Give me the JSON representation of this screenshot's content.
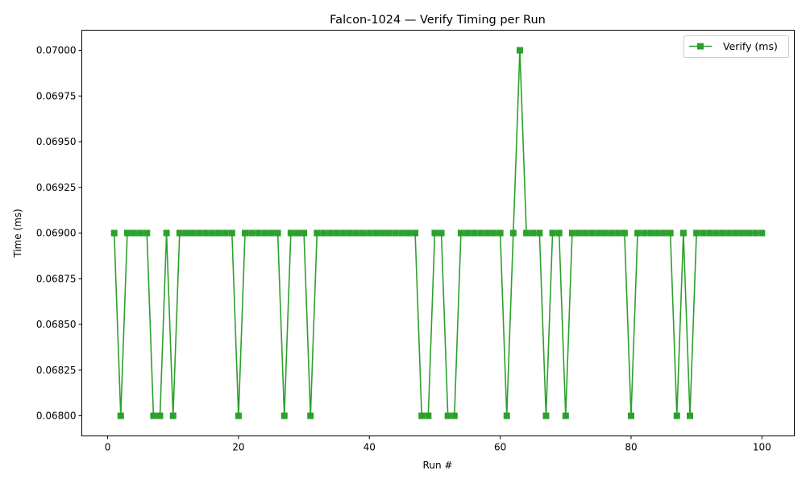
{
  "chart_data": {
    "type": "line",
    "title": "Falcon-1024 — Verify Timing per Run",
    "xlabel": "Run #",
    "ylabel": "Time (ms)",
    "xlim": [
      -3.95,
      104.95
    ],
    "ylim": [
      0.06789,
      0.07011
    ],
    "xticks": [
      0,
      20,
      40,
      60,
      80,
      100
    ],
    "xtick_labels": [
      "0",
      "20",
      "40",
      "60",
      "80",
      "100"
    ],
    "yticks": [
      0.068,
      0.06825,
      0.0685,
      0.06875,
      0.069,
      0.06925,
      0.0695,
      0.06975,
      0.07
    ],
    "ytick_labels": [
      "0.06800",
      "0.06825",
      "0.06850",
      "0.06875",
      "0.06900",
      "0.06925",
      "0.06950",
      "0.06975",
      "0.07000"
    ],
    "grid": false,
    "legend_position": "top-right",
    "series": [
      {
        "name": "Verify (ms)",
        "color": "#2ca02c",
        "marker": "square",
        "x": [
          1,
          2,
          3,
          4,
          5,
          6,
          7,
          8,
          9,
          10,
          11,
          12,
          13,
          14,
          15,
          16,
          17,
          18,
          19,
          20,
          21,
          22,
          23,
          24,
          25,
          26,
          27,
          28,
          29,
          30,
          31,
          32,
          33,
          34,
          35,
          36,
          37,
          38,
          39,
          40,
          41,
          42,
          43,
          44,
          45,
          46,
          47,
          48,
          49,
          50,
          51,
          52,
          53,
          54,
          55,
          56,
          57,
          58,
          59,
          60,
          61,
          62,
          63,
          64,
          65,
          66,
          67,
          68,
          69,
          70,
          71,
          72,
          73,
          74,
          75,
          76,
          77,
          78,
          79,
          80,
          81,
          82,
          83,
          84,
          85,
          86,
          87,
          88,
          89,
          90,
          91,
          92,
          93,
          94,
          95,
          96,
          97,
          98,
          99,
          100
        ],
        "values": [
          0.069,
          0.068,
          0.069,
          0.069,
          0.069,
          0.069,
          0.068,
          0.068,
          0.069,
          0.068,
          0.069,
          0.069,
          0.069,
          0.069,
          0.069,
          0.069,
          0.069,
          0.069,
          0.069,
          0.068,
          0.069,
          0.069,
          0.069,
          0.069,
          0.069,
          0.069,
          0.068,
          0.069,
          0.069,
          0.069,
          0.068,
          0.069,
          0.069,
          0.069,
          0.069,
          0.069,
          0.069,
          0.069,
          0.069,
          0.069,
          0.069,
          0.069,
          0.069,
          0.069,
          0.069,
          0.069,
          0.069,
          0.068,
          0.068,
          0.069,
          0.069,
          0.068,
          0.068,
          0.069,
          0.069,
          0.069,
          0.069,
          0.069,
          0.069,
          0.069,
          0.068,
          0.069,
          0.07,
          0.069,
          0.069,
          0.069,
          0.068,
          0.069,
          0.069,
          0.068,
          0.069,
          0.069,
          0.069,
          0.069,
          0.069,
          0.069,
          0.069,
          0.069,
          0.069,
          0.068,
          0.069,
          0.069,
          0.069,
          0.069,
          0.069,
          0.069,
          0.068,
          0.069,
          0.068,
          0.069,
          0.069,
          0.069,
          0.069,
          0.069,
          0.069,
          0.069,
          0.069,
          0.069,
          0.069,
          0.069
        ]
      }
    ]
  }
}
